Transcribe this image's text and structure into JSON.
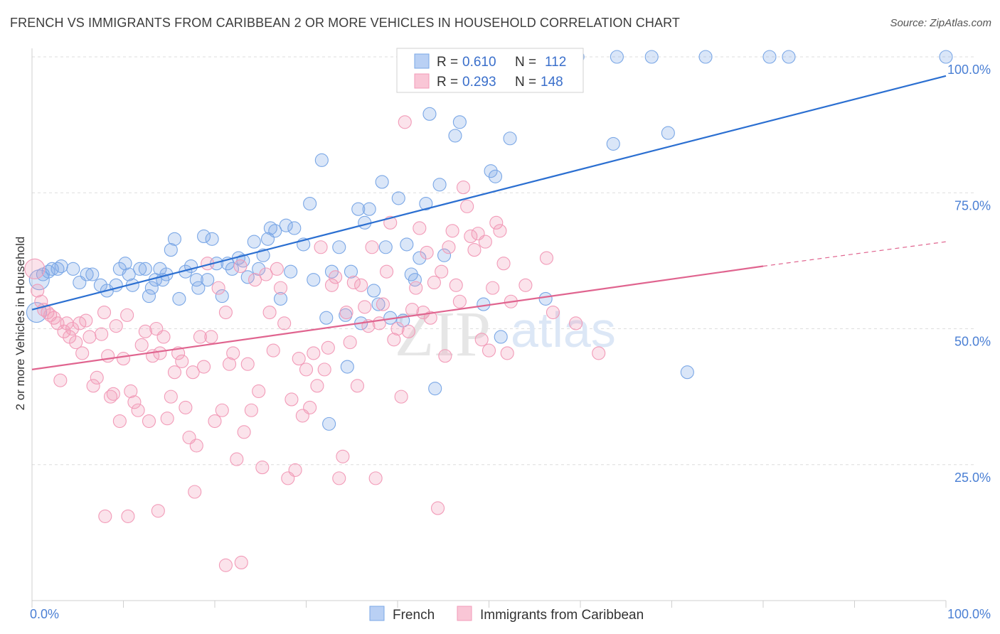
{
  "title": "FRENCH VS IMMIGRANTS FROM CARIBBEAN 2 OR MORE VEHICLES IN HOUSEHOLD CORRELATION CHART",
  "source": "Source: ZipAtlas.com",
  "watermark": {
    "zip": "ZIP",
    "atlas": "atlas"
  },
  "chart_data": {
    "type": "scatter",
    "title": "FRENCH VS IMMIGRANTS FROM CARIBBEAN 2 OR MORE VEHICLES IN HOUSEHOLD CORRELATION CHART",
    "ylabel": "2 or more Vehicles in Household",
    "xlabel": "",
    "xlim": [
      0,
      100
    ],
    "ylim": [
      0,
      100
    ],
    "x_tick_labels": [
      "0.0%",
      "100.0%"
    ],
    "y_tick_labels": [
      {
        "value": 100,
        "label": "100.0%"
      },
      {
        "value": 75,
        "label": "75.0%"
      },
      {
        "value": 50,
        "label": "50.0%"
      },
      {
        "value": 25,
        "label": "25.0%"
      }
    ],
    "grid": true,
    "legend_position": "top-center",
    "series": [
      {
        "name": "French",
        "color": "#7aa7e6",
        "line_color": "#2b6fd1",
        "R": "0.610",
        "N": "112",
        "trend": {
          "x0": 0,
          "y0": 53.5,
          "x1": 100,
          "y1": 96.5
        },
        "points": [
          [
            0.5,
            53
          ],
          [
            0.8,
            59
          ],
          [
            1.2,
            60
          ],
          [
            1.8,
            60.5
          ],
          [
            2.2,
            61
          ],
          [
            2.8,
            61
          ],
          [
            3.2,
            61.5
          ],
          [
            4.5,
            61
          ],
          [
            5.2,
            58.5
          ],
          [
            6,
            60
          ],
          [
            6.6,
            60
          ],
          [
            7.5,
            58
          ],
          [
            8.2,
            57
          ],
          [
            9.2,
            58
          ],
          [
            9.6,
            61
          ],
          [
            10.2,
            62
          ],
          [
            10.6,
            60
          ],
          [
            11,
            58
          ],
          [
            11.8,
            61
          ],
          [
            12.4,
            61
          ],
          [
            12.8,
            56
          ],
          [
            13.1,
            57.5
          ],
          [
            13.5,
            59
          ],
          [
            14,
            61
          ],
          [
            14.3,
            59
          ],
          [
            14.7,
            60
          ],
          [
            15.2,
            64.5
          ],
          [
            15.6,
            66.5
          ],
          [
            16.1,
            55.5
          ],
          [
            16.8,
            60.5
          ],
          [
            17.4,
            61.5
          ],
          [
            18,
            59
          ],
          [
            18.2,
            57.5
          ],
          [
            18.8,
            67
          ],
          [
            19.2,
            59
          ],
          [
            19.7,
            66.5
          ],
          [
            20.2,
            62
          ],
          [
            20.8,
            56
          ],
          [
            21.4,
            62
          ],
          [
            21.9,
            61
          ],
          [
            22.6,
            63
          ],
          [
            23.1,
            62.5
          ],
          [
            23.6,
            59.5
          ],
          [
            24.3,
            66
          ],
          [
            24.8,
            61
          ],
          [
            25.3,
            63.5
          ],
          [
            25.8,
            66.5
          ],
          [
            26.1,
            68.5
          ],
          [
            26.6,
            68
          ],
          [
            27.2,
            55.5
          ],
          [
            27.8,
            69
          ],
          [
            28.3,
            60.5
          ],
          [
            28.7,
            68.5
          ],
          [
            29.7,
            65.5
          ],
          [
            30.4,
            73
          ],
          [
            30.8,
            59
          ],
          [
            31.7,
            81
          ],
          [
            32.2,
            52
          ],
          [
            32.8,
            60.5
          ],
          [
            33.6,
            65
          ],
          [
            34.3,
            52.5
          ],
          [
            34.9,
            60.5
          ],
          [
            35.7,
            72
          ],
          [
            36,
            51
          ],
          [
            36.4,
            69.5
          ],
          [
            36.9,
            72
          ],
          [
            37.4,
            57
          ],
          [
            37.9,
            54.5
          ],
          [
            38.3,
            77
          ],
          [
            38.7,
            65
          ],
          [
            39.2,
            52
          ],
          [
            40.1,
            74
          ],
          [
            40.6,
            51.5
          ],
          [
            41,
            65.5
          ],
          [
            41.5,
            60
          ],
          [
            41.9,
            59
          ],
          [
            42.4,
            63
          ],
          [
            43.1,
            73
          ],
          [
            43.5,
            89.5
          ],
          [
            44.1,
            39
          ],
          [
            44.6,
            76.5
          ],
          [
            45.1,
            63.5
          ],
          [
            46.3,
            85.5
          ],
          [
            46.8,
            88
          ],
          [
            47.5,
            100
          ],
          [
            49.4,
            54.5
          ],
          [
            50.2,
            79
          ],
          [
            50.7,
            78
          ],
          [
            51.3,
            48.5
          ],
          [
            52.3,
            85
          ],
          [
            53.6,
            100
          ],
          [
            55.3,
            100
          ],
          [
            56.2,
            55.5
          ],
          [
            59.7,
            100
          ],
          [
            63.6,
            84
          ],
          [
            64,
            100
          ],
          [
            67.8,
            100
          ],
          [
            69.6,
            86
          ],
          [
            71.7,
            42
          ],
          [
            73.7,
            100
          ],
          [
            80.7,
            100
          ],
          [
            82.8,
            100
          ],
          [
            100,
            100
          ],
          [
            32.5,
            32.5
          ],
          [
            34.5,
            43
          ]
        ]
      },
      {
        "name": "Immigrants from Caribbean",
        "color": "#f29bb8",
        "line_color": "#e0648f",
        "R": "0.293",
        "N": "148",
        "trend": {
          "x0": 0,
          "y0": 42.5,
          "x1": 80,
          "y1": 61.5
        },
        "trend_dashed": {
          "x0": 80,
          "y0": 61.5,
          "x1": 100,
          "y1": 66
        },
        "points": [
          [
            0.3,
            61
          ],
          [
            0.6,
            57
          ],
          [
            1,
            55
          ],
          [
            1.3,
            53.5
          ],
          [
            1.7,
            53
          ],
          [
            2,
            52.5
          ],
          [
            2.4,
            52
          ],
          [
            2.8,
            51
          ],
          [
            3.1,
            40.5
          ],
          [
            3.5,
            49.5
          ],
          [
            3.8,
            51
          ],
          [
            4.1,
            48.5
          ],
          [
            4.4,
            50
          ],
          [
            4.8,
            47.5
          ],
          [
            5.2,
            51
          ],
          [
            5.5,
            45.5
          ],
          [
            5.9,
            51.5
          ],
          [
            6.3,
            48.5
          ],
          [
            6.7,
            39.5
          ],
          [
            7.1,
            41
          ],
          [
            7.6,
            49
          ],
          [
            7.9,
            53
          ],
          [
            8.3,
            45
          ],
          [
            8.6,
            37.5
          ],
          [
            8.9,
            38
          ],
          [
            9.2,
            50.5
          ],
          [
            9.6,
            33
          ],
          [
            10,
            44.5
          ],
          [
            10.4,
            52.5
          ],
          [
            10.8,
            38.5
          ],
          [
            11.2,
            36.5
          ],
          [
            11.6,
            35
          ],
          [
            12,
            47
          ],
          [
            12.4,
            49.5
          ],
          [
            12.8,
            33
          ],
          [
            13.2,
            45
          ],
          [
            13.6,
            50
          ],
          [
            14,
            45.5
          ],
          [
            14.4,
            48.5
          ],
          [
            14.8,
            33.5
          ],
          [
            15.2,
            37.5
          ],
          [
            15.6,
            42
          ],
          [
            16,
            45.5
          ],
          [
            16.4,
            44
          ],
          [
            16.8,
            35.5
          ],
          [
            17.2,
            30
          ],
          [
            17.6,
            42
          ],
          [
            18,
            28.5
          ],
          [
            18.4,
            48.5
          ],
          [
            18.8,
            43
          ],
          [
            19.2,
            62
          ],
          [
            19.6,
            48.5
          ],
          [
            20,
            33
          ],
          [
            20.4,
            57.5
          ],
          [
            20.8,
            35
          ],
          [
            21.2,
            53
          ],
          [
            21.6,
            43.5
          ],
          [
            22,
            45.5
          ],
          [
            22.4,
            26
          ],
          [
            22.8,
            61.5
          ],
          [
            23.2,
            31
          ],
          [
            23.6,
            43.5
          ],
          [
            24,
            35
          ],
          [
            24.4,
            59
          ],
          [
            24.8,
            38.5
          ],
          [
            25.2,
            24.5
          ],
          [
            25.6,
            60
          ],
          [
            26,
            53
          ],
          [
            26.4,
            46
          ],
          [
            26.8,
            61
          ],
          [
            27.2,
            57.5
          ],
          [
            27.6,
            51
          ],
          [
            28,
            22.5
          ],
          [
            28.4,
            37
          ],
          [
            28.8,
            24
          ],
          [
            29.2,
            44.5
          ],
          [
            29.6,
            34
          ],
          [
            30,
            42.5
          ],
          [
            30.4,
            35.5
          ],
          [
            30.8,
            45.5
          ],
          [
            31.2,
            39.5
          ],
          [
            31.6,
            65
          ],
          [
            32,
            42.5
          ],
          [
            32.4,
            46.5
          ],
          [
            32.8,
            58
          ],
          [
            33.2,
            59.5
          ],
          [
            33.6,
            22.5
          ],
          [
            34,
            26.5
          ],
          [
            34.4,
            53
          ],
          [
            34.8,
            47.5
          ],
          [
            35.2,
            58.5
          ],
          [
            35.6,
            39.5
          ],
          [
            36,
            58
          ],
          [
            36.4,
            54
          ],
          [
            36.8,
            50.5
          ],
          [
            37.2,
            65
          ],
          [
            37.6,
            22.5
          ],
          [
            38,
            51
          ],
          [
            38.4,
            54.5
          ],
          [
            38.8,
            60.5
          ],
          [
            39.2,
            69.5
          ],
          [
            39.6,
            48
          ],
          [
            40,
            50
          ],
          [
            40.4,
            37.5
          ],
          [
            40.8,
            88
          ],
          [
            41.2,
            49.5
          ],
          [
            41.6,
            53.5
          ],
          [
            42,
            57.5
          ],
          [
            42.4,
            68.5
          ],
          [
            42.8,
            53
          ],
          [
            43.2,
            64
          ],
          [
            43.6,
            52
          ],
          [
            44,
            58.5
          ],
          [
            44.4,
            17
          ],
          [
            44.8,
            60.5
          ],
          [
            45.2,
            45
          ],
          [
            45.6,
            65
          ],
          [
            46,
            68
          ],
          [
            46.4,
            58
          ],
          [
            46.8,
            55
          ],
          [
            47.2,
            76
          ],
          [
            47.6,
            72.5
          ],
          [
            48,
            67
          ],
          [
            48.4,
            64.5
          ],
          [
            48.8,
            67.5
          ],
          [
            49.2,
            48
          ],
          [
            49.6,
            66
          ],
          [
            50,
            46
          ],
          [
            50.4,
            57.5
          ],
          [
            50.8,
            69.5
          ],
          [
            51.2,
            68
          ],
          [
            51.6,
            62
          ],
          [
            52,
            45.5
          ],
          [
            52.4,
            55
          ],
          [
            54,
            58
          ],
          [
            56.3,
            63
          ],
          [
            57,
            53
          ],
          [
            59.5,
            51
          ],
          [
            62,
            45.5
          ],
          [
            10.5,
            15.5
          ],
          [
            13.8,
            16.5
          ],
          [
            17.8,
            20
          ],
          [
            21.2,
            6.5
          ],
          [
            22.9,
            7
          ],
          [
            8,
            15.5
          ]
        ]
      }
    ]
  },
  "legend": {
    "r_label": "R =",
    "n_label": "N ="
  }
}
